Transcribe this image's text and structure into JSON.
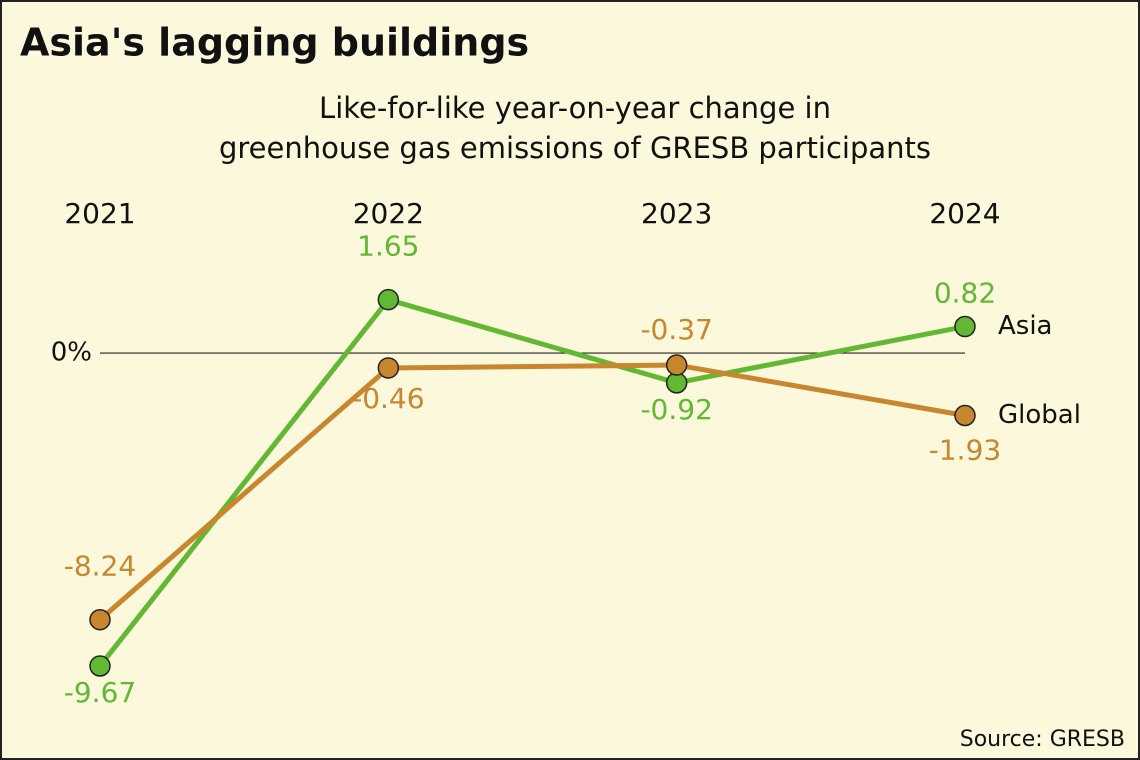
{
  "chart_data": {
    "type": "line",
    "title": "Asia's lagging buildings",
    "subtitle": [
      "Like-for-like year-on-year change in",
      "greenhouse gas emissions of GRESB participants"
    ],
    "source": "Source: GRESB",
    "categories": [
      "2021",
      "2022",
      "2023",
      "2024"
    ],
    "series": [
      {
        "name": "Asia",
        "color": "#62b832",
        "values": [
          -9.67,
          1.65,
          -0.92,
          0.82
        ]
      },
      {
        "name": "Global",
        "color": "#c8862e",
        "values": [
          -8.24,
          -0.46,
          -0.37,
          -1.93
        ]
      }
    ],
    "ylim": [
      -11,
      3
    ],
    "yticks": [
      {
        "value": 0,
        "label": "0%"
      }
    ],
    "grid": false
  }
}
